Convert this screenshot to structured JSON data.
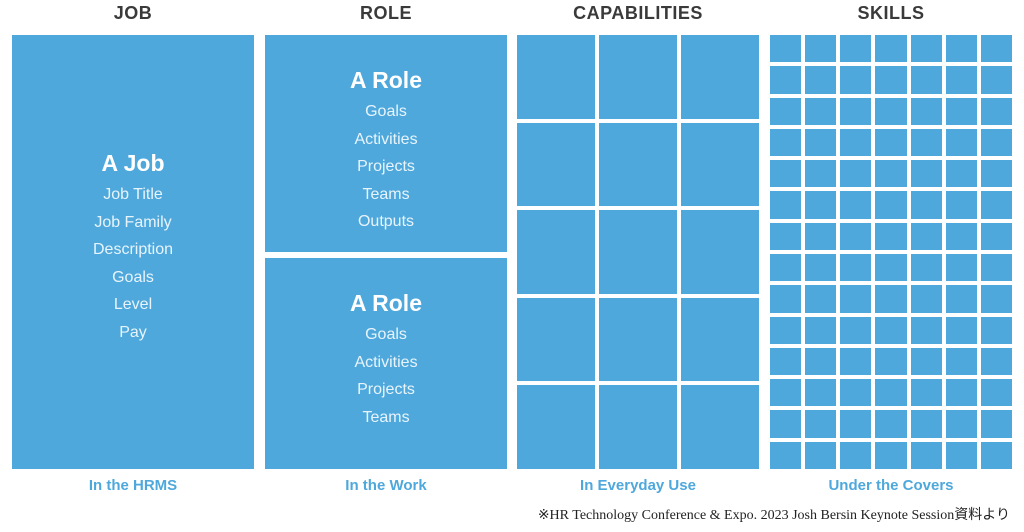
{
  "headers": [
    "JOB",
    "ROLE",
    "CAPABILITIES",
    "SKILLS"
  ],
  "job": {
    "title": "A Job",
    "items": [
      "Job Title",
      "Job Family",
      "Description",
      "Goals",
      "Level",
      "Pay"
    ],
    "footer": "In the HRMS"
  },
  "role": {
    "blocks": [
      {
        "title": "A Role",
        "items": [
          "Goals",
          "Activities",
          "Projects",
          "Teams",
          "Outputs"
        ]
      },
      {
        "title": "A Role",
        "items": [
          "Goals",
          "Activities",
          "Projects",
          "Teams"
        ]
      }
    ],
    "footer": "In the Work"
  },
  "capabilities": {
    "footer": "In Everyday Use"
  },
  "skills": {
    "footer": "Under the Covers"
  },
  "caption": "※HR Technology Conference & Expo. 2023 Josh Bersin  Keynote Session資料より",
  "colors": {
    "accent": "#4ea8dc",
    "header": "#3a3a3a"
  }
}
